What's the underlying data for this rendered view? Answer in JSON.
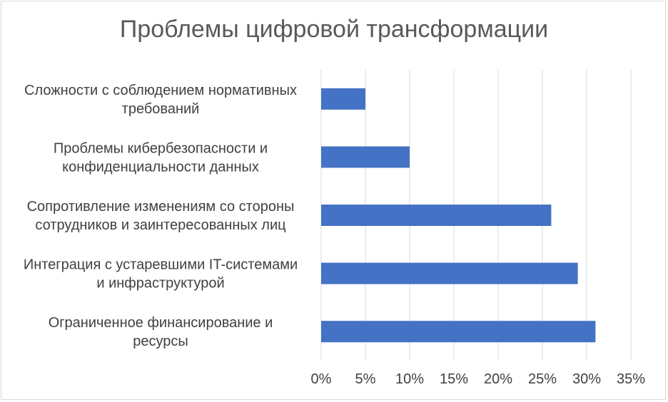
{
  "chart_data": {
    "type": "bar",
    "orientation": "horizontal",
    "title": "Проблемы цифровой трансформации",
    "categories": [
      [
        "Сложности с соблюдением нормативных",
        "требований"
      ],
      [
        "Проблемы кибербезопасности и",
        "конфиденциальности данных"
      ],
      [
        "Сопротивление изменениям со стороны",
        "сотрудников и заинтересованных лиц"
      ],
      [
        "Интеграция с устаревшими IT-системами",
        "и инфраструктурой"
      ],
      [
        "Ограниченное финансирование и",
        "ресурсы"
      ]
    ],
    "values": [
      5,
      10,
      26,
      29,
      31
    ],
    "xlim": [
      0,
      35
    ],
    "xticks": [
      "0%",
      "5%",
      "10%",
      "15%",
      "20%",
      "25%",
      "30%",
      "35%"
    ],
    "bar_color": "#4472c4",
    "grid": true
  }
}
